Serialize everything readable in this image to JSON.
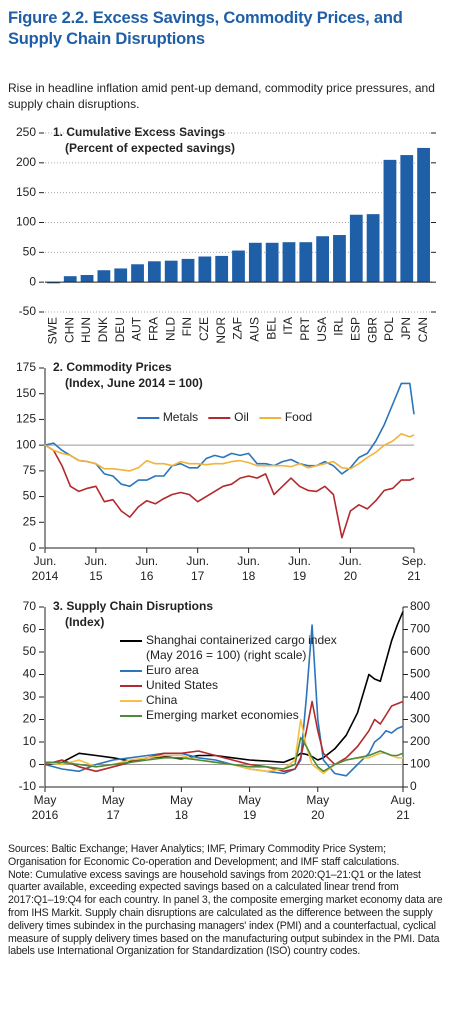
{
  "header": {
    "title": "Figure 2.2.  Excess Savings, Commodity Prices, and Supply Chain Disruptions",
    "subtitle": "Rise in headline inflation amid pent-up demand, commodity price pressures, and supply chain disruptions."
  },
  "chart_data": [
    {
      "type": "bar",
      "title": "1. Cumulative Excess Savings",
      "subtitle": "(Percent of expected savings)",
      "categories": [
        "SWE",
        "CHN",
        "HUN",
        "DNK",
        "DEU",
        "AUT",
        "FRA",
        "NLD",
        "FIN",
        "CZE",
        "NOR",
        "ZAF",
        "AUS",
        "BEL",
        "ITA",
        "PRT",
        "USA",
        "IRL",
        "ESP",
        "GBR",
        "POL",
        "JPN",
        "CAN"
      ],
      "values": [
        -2,
        10,
        12,
        20,
        23,
        30,
        35,
        36,
        39,
        43,
        44,
        53,
        66,
        66,
        67,
        67,
        77,
        79,
        113,
        114,
        205,
        213,
        225
      ],
      "color": "#1f5fa8",
      "ylim": [
        -50,
        250
      ],
      "yticks": [
        -50,
        0,
        50,
        100,
        150,
        200,
        250
      ],
      "grid": true
    },
    {
      "type": "line",
      "title": "2. Commodity Prices",
      "subtitle": "(Index, June 2014 = 100)",
      "x": [
        "2014-06",
        "2014-08",
        "2014-10",
        "2014-12",
        "2015-02",
        "2015-04",
        "2015-06",
        "2015-08",
        "2015-10",
        "2015-12",
        "2016-02",
        "2016-04",
        "2016-06",
        "2016-08",
        "2016-10",
        "2016-12",
        "2017-02",
        "2017-04",
        "2017-06",
        "2017-08",
        "2017-10",
        "2017-12",
        "2018-02",
        "2018-04",
        "2018-06",
        "2018-08",
        "2018-10",
        "2018-12",
        "2019-02",
        "2019-04",
        "2019-06",
        "2019-08",
        "2019-10",
        "2019-12",
        "2020-02",
        "2020-04",
        "2020-06",
        "2020-08",
        "2020-10",
        "2020-12",
        "2021-02",
        "2021-04",
        "2021-06",
        "2021-08",
        "2021-09"
      ],
      "series": [
        {
          "name": "Metals",
          "color": "#2a75bb",
          "values": [
            100,
            102,
            95,
            90,
            85,
            84,
            82,
            72,
            70,
            62,
            60,
            66,
            66,
            70,
            70,
            80,
            82,
            78,
            78,
            87,
            90,
            88,
            92,
            90,
            92,
            82,
            82,
            80,
            84,
            86,
            82,
            80,
            80,
            84,
            80,
            72,
            78,
            88,
            92,
            104,
            120,
            140,
            160,
            160,
            130
          ]
        },
        {
          "name": "Oil",
          "color": "#b22a2e",
          "values": [
            100,
            95,
            80,
            60,
            55,
            58,
            60,
            45,
            47,
            36,
            30,
            40,
            46,
            43,
            48,
            52,
            54,
            52,
            45,
            50,
            55,
            60,
            62,
            68,
            70,
            68,
            72,
            52,
            60,
            68,
            60,
            56,
            55,
            60,
            52,
            10,
            36,
            42,
            38,
            46,
            56,
            58,
            66,
            66,
            68
          ]
        },
        {
          "name": "Food",
          "color": "#f0b43c",
          "values": [
            100,
            95,
            92,
            90,
            85,
            84,
            82,
            77,
            77,
            76,
            75,
            78,
            85,
            82,
            82,
            80,
            84,
            82,
            82,
            81,
            82,
            82,
            84,
            85,
            83,
            80,
            80,
            80,
            80,
            79,
            82,
            78,
            80,
            82,
            84,
            78,
            77,
            82,
            88,
            93,
            100,
            104,
            111,
            108,
            110
          ]
        }
      ],
      "xlim": [
        "2014-06",
        "2021-09"
      ],
      "xticks": [
        {
          "value": "2014-06",
          "label": [
            "Jun.",
            "2014"
          ]
        },
        {
          "value": "2015-06",
          "label": [
            "Jun.",
            "15"
          ]
        },
        {
          "value": "2016-06",
          "label": [
            "Jun.",
            "16"
          ]
        },
        {
          "value": "2017-06",
          "label": [
            "Jun.",
            "17"
          ]
        },
        {
          "value": "2018-06",
          "label": [
            "Jun.",
            "18"
          ]
        },
        {
          "value": "2019-06",
          "label": [
            "Jun.",
            "19"
          ]
        },
        {
          "value": "2020-06",
          "label": [
            "Jun.",
            "20"
          ]
        },
        {
          "value": "2021-09",
          "label": [
            "Sep.",
            "21"
          ]
        }
      ],
      "ylim": [
        0,
        175
      ],
      "yticks": [
        0,
        25,
        50,
        75,
        100,
        125,
        150,
        175
      ],
      "reference_line": 100,
      "legend": "upper center"
    },
    {
      "type": "line",
      "title": "3. Supply Chain Disruptions",
      "subtitle": "(Index)",
      "x": [
        "2016-05",
        "2016-08",
        "2016-11",
        "2017-02",
        "2017-05",
        "2017-08",
        "2017-11",
        "2018-02",
        "2018-05",
        "2018-08",
        "2018-11",
        "2019-02",
        "2019-05",
        "2019-08",
        "2019-11",
        "2020-01",
        "2020-02",
        "2020-03",
        "2020-04",
        "2020-05",
        "2020-06",
        "2020-08",
        "2020-10",
        "2020-12",
        "2021-02",
        "2021-03",
        "2021-04",
        "2021-05",
        "2021-06",
        "2021-07",
        "2021-08"
      ],
      "series": [
        {
          "name": "Shanghai containerized cargo index (May 2016 = 100) (right scale)",
          "color": "#000000",
          "axis": "y2",
          "values": [
            100,
            110,
            150,
            140,
            130,
            115,
            130,
            135,
            125,
            140,
            140,
            130,
            120,
            115,
            110,
            130,
            150,
            145,
            135,
            120,
            130,
            170,
            230,
            330,
            500,
            480,
            470,
            560,
            650,
            720,
            780
          ]
        },
        {
          "name": "Euro area",
          "color": "#2a75bb",
          "values": [
            0,
            -2,
            -3,
            0,
            2,
            3,
            4,
            5,
            5,
            3,
            2,
            0,
            -2,
            -3,
            -4,
            -2,
            2,
            30,
            62,
            20,
            2,
            -4,
            -5,
            0,
            5,
            10,
            12,
            15,
            14,
            16,
            17
          ]
        },
        {
          "name": "United States",
          "color": "#b22a2e",
          "values": [
            0,
            2,
            -1,
            -3,
            -1,
            1,
            3,
            5,
            5,
            6,
            4,
            2,
            0,
            -1,
            -3,
            -2,
            3,
            15,
            28,
            15,
            5,
            0,
            3,
            8,
            15,
            20,
            18,
            22,
            26,
            27,
            28
          ]
        },
        {
          "name": "China",
          "color": "#f5c242",
          "values": [
            1,
            0,
            2,
            -1,
            0,
            2,
            3,
            4,
            4,
            2,
            1,
            0,
            -2,
            -3,
            -2,
            2,
            20,
            8,
            0,
            -2,
            -4,
            0,
            2,
            3,
            3,
            4,
            5,
            5,
            4,
            3,
            3
          ]
        },
        {
          "name": "Emerging market economies",
          "color": "#4e8a3e",
          "values": [
            1,
            1,
            0,
            -1,
            0,
            1,
            2,
            3,
            3,
            2,
            1,
            0,
            -1,
            -1,
            -2,
            0,
            12,
            8,
            3,
            -1,
            -3,
            0,
            2,
            3,
            4,
            5,
            6,
            5,
            4,
            4,
            5
          ]
        }
      ],
      "xlim": [
        "2016-05",
        "2021-08"
      ],
      "xticks": [
        {
          "value": "2016-05",
          "label": [
            "May",
            "2016"
          ]
        },
        {
          "value": "2017-05",
          "label": [
            "May",
            "17"
          ]
        },
        {
          "value": "2018-05",
          "label": [
            "May",
            "18"
          ]
        },
        {
          "value": "2019-05",
          "label": [
            "May",
            "19"
          ]
        },
        {
          "value": "2020-05",
          "label": [
            "May",
            "20"
          ]
        },
        {
          "value": "2021-08",
          "label": [
            "Aug.",
            "21"
          ]
        }
      ],
      "ylim": [
        -10,
        70
      ],
      "yticks": [
        -10,
        0,
        10,
        20,
        30,
        40,
        50,
        60,
        70
      ],
      "y2lim": [
        0,
        800
      ],
      "y2ticks": [
        0,
        100,
        200,
        300,
        400,
        500,
        600,
        700,
        800
      ],
      "reference_line": 0,
      "legend": "upper left"
    }
  ],
  "footer": {
    "sources": "Sources: Baltic Exchange; Haver Analytics; IMF, Primary Commodity Price System; Organisation for Economic Co-operation and Development; and IMF staff calculations.",
    "note": "Note: Cumulative excess savings are household savings from 2020:Q1–21:Q1 or the latest quarter available, exceeding expected savings based on a calculated linear trend from 2017:Q1–19:Q4 for each country. In panel 3, the composite emerging market economy data are from IHS Markit. Supply chain disruptions are calculated as the difference between the supply delivery times subindex in the purchasing managers' index (PMI) and a counterfactual, cyclical measure of supply delivery times based on the manufacturing output subindex in the PMI. Data labels use International Organization for Standardization (ISO) country codes."
  }
}
